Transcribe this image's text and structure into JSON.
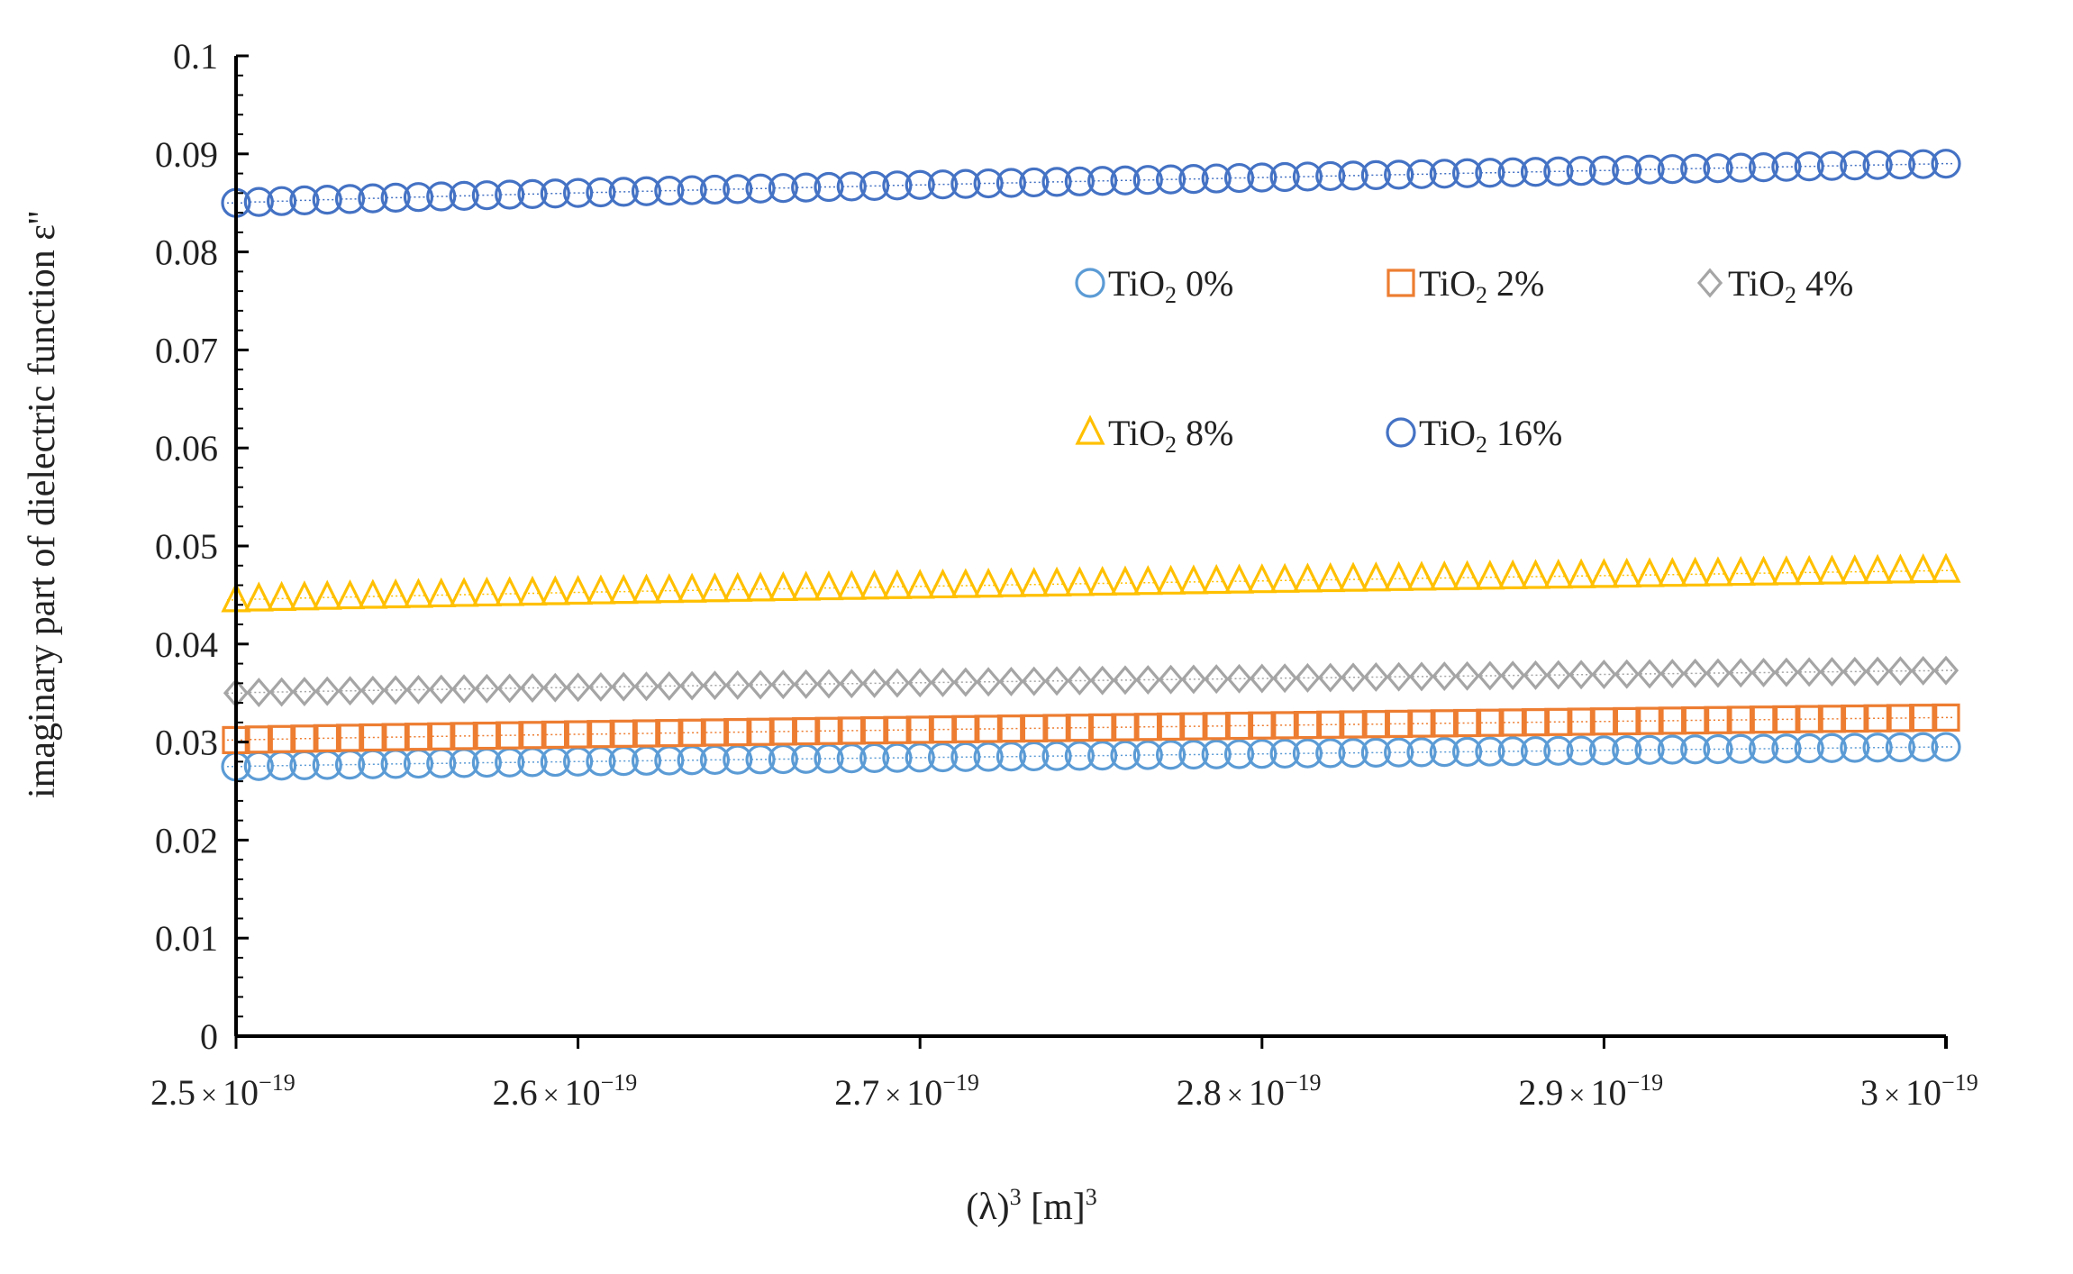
{
  "chart_data": {
    "type": "scatter",
    "title": "",
    "xlabel": "(λ)",
    "xlabel_sup1": "3",
    "xlabel_mid": " [m]",
    "xlabel_sup2": "3",
    "ylabel": "imaginary part of dielectric function  ε''",
    "xlim": [
      2.5e-19,
      3e-19
    ],
    "ylim": [
      0,
      0.1
    ],
    "x_ticks": [
      {
        "value": 2.5e-19,
        "mant": "2.5",
        "times": "×",
        "base": "10",
        "exp": "−19"
      },
      {
        "value": 2.6e-19,
        "mant": "2.6",
        "times": "×",
        "base": "10",
        "exp": "−19"
      },
      {
        "value": 2.7e-19,
        "mant": "2.7",
        "times": "×",
        "base": "10",
        "exp": "−19"
      },
      {
        "value": 2.8e-19,
        "mant": "2.8",
        "times": "×",
        "base": "10",
        "exp": "−19"
      },
      {
        "value": 2.9e-19,
        "mant": "2.9",
        "times": "×",
        "base": "10",
        "exp": "−19"
      },
      {
        "value": 3e-19,
        "mant": "3",
        "times": "×",
        "base": "10",
        "exp": "−19"
      }
    ],
    "y_ticks": [
      "0",
      "0.01",
      "0.02",
      "0.03",
      "0.04",
      "0.05",
      "0.06",
      "0.07",
      "0.08",
      "0.09",
      "0.1"
    ],
    "y_tick_values": [
      0,
      0.01,
      0.02,
      0.03,
      0.04,
      0.05,
      0.06,
      0.07,
      0.08,
      0.09,
      0.1
    ],
    "legend_position": "upper-right inside plot",
    "points_per_series": 76,
    "series": [
      {
        "name": "TiO2 0%",
        "label_main": "TiO",
        "label_sub": "2",
        "label_pct": " 0%",
        "marker": "circle",
        "color": "#5b9bd5",
        "y_start": 0.0275,
        "y_end": 0.0295
      },
      {
        "name": "TiO2 2%",
        "label_main": "TiO",
        "label_sub": "2",
        "label_pct": " 2%",
        "marker": "square",
        "color": "#ed7d31",
        "y_start": 0.0302,
        "y_end": 0.0325
      },
      {
        "name": "TiO2 4%",
        "label_main": "TiO",
        "label_sub": "2",
        "label_pct": " 4%",
        "marker": "diamond",
        "color": "#a5a5a5",
        "y_start": 0.035,
        "y_end": 0.0373
      },
      {
        "name": "TiO2 8%",
        "label_main": "TiO",
        "label_sub": "2",
        "label_pct": " 8%",
        "marker": "triangle",
        "color": "#ffc000",
        "y_start": 0.0445,
        "y_end": 0.0475
      },
      {
        "name": "TiO2 16%",
        "label_main": "TiO",
        "label_sub": "2",
        "label_pct": " 16%",
        "marker": "circle",
        "color": "#4472c4",
        "y_start": 0.085,
        "y_end": 0.089
      }
    ]
  }
}
